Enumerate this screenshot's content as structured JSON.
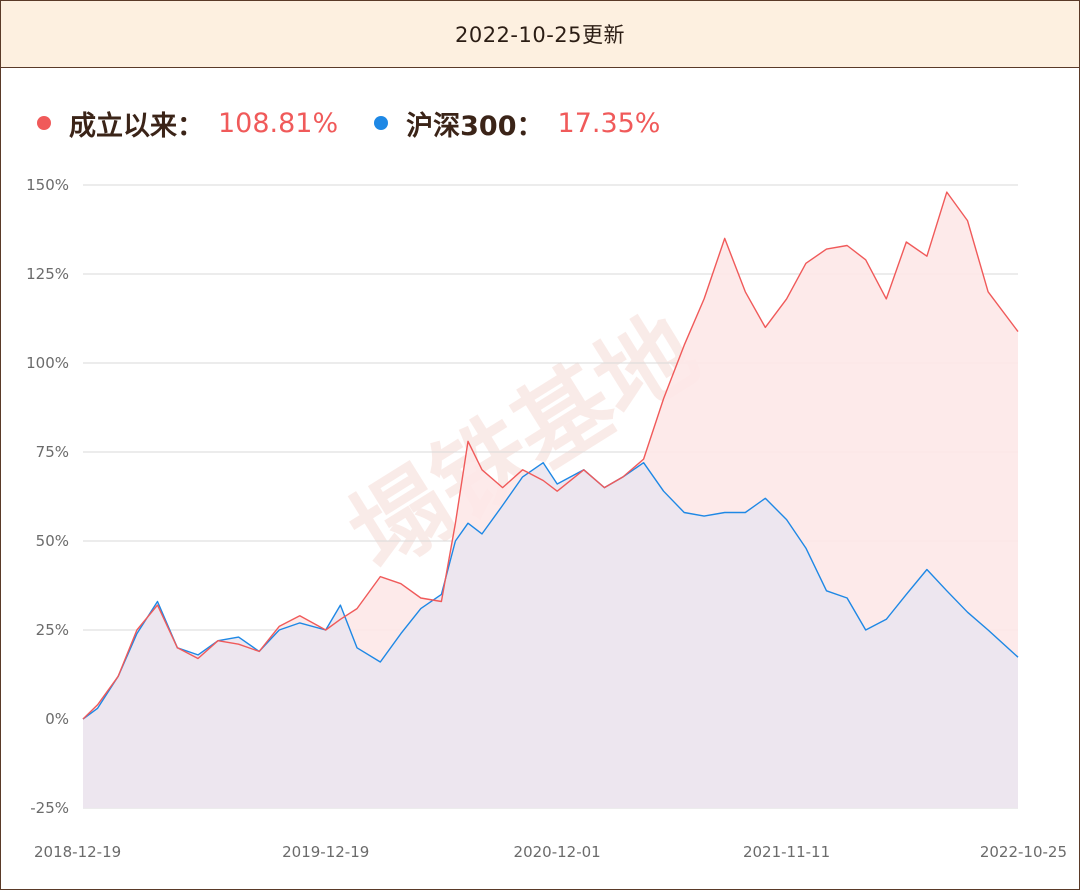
{
  "header": {
    "title": "2022-10-25更新"
  },
  "legend": [
    {
      "name": "成立以来",
      "colon": "：",
      "value": "108.81%",
      "dot_color": "#f05a5a",
      "value_color": "#f05a5a"
    },
    {
      "name": "沪深300",
      "colon": "：",
      "value": "17.35%",
      "dot_color": "#1e88e5",
      "value_color": "#f05a5a"
    }
  ],
  "watermark": "塌铁基地",
  "colors": {
    "fund_line": "#f05a5a",
    "fund_fill": "#fde8e8",
    "index_line": "#1e88e5",
    "index_fill": "#ebe6f0",
    "grid": "#d9d9d9"
  },
  "chart_data": {
    "type": "line",
    "title": "",
    "xlabel": "",
    "ylabel": "",
    "ylim": [
      -25,
      150
    ],
    "y_ticks": [
      "150%",
      "125%",
      "100%",
      "75%",
      "50%",
      "25%",
      "0%",
      "-25%"
    ],
    "y_tick_values": [
      150,
      125,
      100,
      75,
      50,
      25,
      0,
      -25
    ],
    "x_ticks": [
      "2018-12-19",
      "2019-12-19",
      "2020-12-01",
      "2021-11-11",
      "2022-10-25"
    ],
    "x": [
      "2018-12-19",
      "2019-01-10",
      "2019-02-10",
      "2019-03-10",
      "2019-04-10",
      "2019-05-10",
      "2019-06-10",
      "2019-07-10",
      "2019-08-10",
      "2019-09-10",
      "2019-10-10",
      "2019-11-10",
      "2019-12-19",
      "2020-01-10",
      "2020-02-04",
      "2020-03-10",
      "2020-04-10",
      "2020-05-10",
      "2020-06-10",
      "2020-07-01",
      "2020-07-20",
      "2020-08-10",
      "2020-09-10",
      "2020-10-10",
      "2020-11-10",
      "2020-12-01",
      "2021-01-10",
      "2021-02-10",
      "2021-03-10",
      "2021-04-10",
      "2021-05-10",
      "2021-06-10",
      "2021-07-10",
      "2021-08-10",
      "2021-09-10",
      "2021-10-10",
      "2021-11-11",
      "2021-12-10",
      "2022-01-10",
      "2022-02-10",
      "2022-03-10",
      "2022-04-10",
      "2022-05-10",
      "2022-06-10",
      "2022-07-10",
      "2022-08-10",
      "2022-09-10",
      "2022-10-25"
    ],
    "series": [
      {
        "name": "成立以来",
        "values": [
          0,
          4,
          12,
          25,
          32,
          20,
          17,
          22,
          21,
          19,
          26,
          29,
          25,
          28,
          31,
          40,
          38,
          34,
          33,
          55,
          78,
          70,
          65,
          70,
          67,
          64,
          70,
          65,
          68,
          73,
          90,
          105,
          118,
          135,
          120,
          110,
          118,
          128,
          132,
          133,
          129,
          118,
          134,
          130,
          148,
          140,
          120,
          108.81
        ]
      },
      {
        "name": "沪深300",
        "values": [
          0,
          3,
          12,
          24,
          33,
          20,
          18,
          22,
          23,
          19,
          25,
          27,
          25,
          32,
          20,
          16,
          24,
          31,
          35,
          50,
          55,
          52,
          60,
          68,
          72,
          66,
          70,
          65,
          68,
          72,
          64,
          58,
          57,
          58,
          58,
          62,
          56,
          48,
          36,
          34,
          25,
          28,
          35,
          42,
          36,
          30,
          25,
          17.35
        ]
      }
    ]
  }
}
